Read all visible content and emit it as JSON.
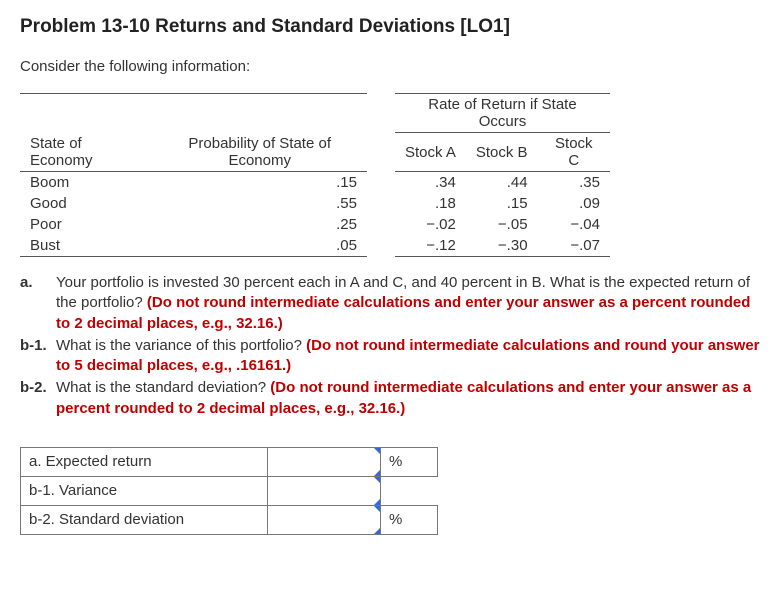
{
  "title": "Problem 13-10 Returns and Standard Deviations [LO1]",
  "intro": "Consider the following information:",
  "table": {
    "rate_header": "Rate of Return if State Occurs",
    "col_state": "State of Economy",
    "col_prob": "Probability of State of Economy",
    "col_a": "Stock A",
    "col_b": "Stock B",
    "col_c": "Stock C",
    "rows": [
      {
        "state": "Boom",
        "prob": ".15",
        "a": ".34",
        "b": ".44",
        "c": ".35"
      },
      {
        "state": "Good",
        "prob": ".55",
        "a": ".18",
        "b": ".15",
        "c": ".09"
      },
      {
        "state": "Poor",
        "prob": ".25",
        "a": "−.02",
        "b": "−.05",
        "c": "−.04"
      },
      {
        "state": "Bust",
        "prob": ".05",
        "a": "−.12",
        "b": "−.30",
        "c": "−.07"
      }
    ]
  },
  "questions": {
    "a": {
      "marker": "a.",
      "text": "Your portfolio is invested 30 percent each in A and C, and 40 percent in B. What is the expected return of the portfolio? ",
      "hint": "(Do not round intermediate calculations and enter your answer as a percent rounded to 2 decimal places, e.g., 32.16.)"
    },
    "b1": {
      "marker": "b-1.",
      "text": "What is the variance of this portfolio? ",
      "hint": "(Do not round intermediate calculations and round your answer to 5 decimal places, e.g., .16161.)"
    },
    "b2": {
      "marker": "b-2.",
      "text": "What is the standard deviation? ",
      "hint": "(Do not round intermediate calculations and enter your answer as a percent rounded to 2 decimal places, e.g., 32.16.)"
    }
  },
  "answers": {
    "a": {
      "label": "a. Expected return",
      "unit": "%"
    },
    "b1": {
      "label": "b-1. Variance",
      "unit": ""
    },
    "b2": {
      "label": "b-2. Standard deviation",
      "unit": "%"
    }
  }
}
